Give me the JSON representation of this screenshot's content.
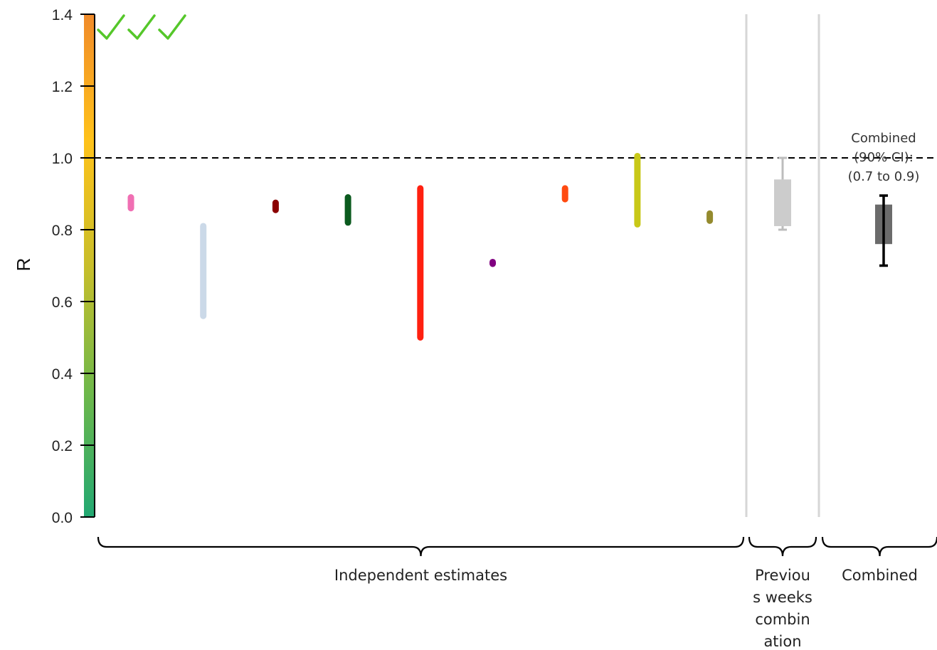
{
  "chart_data": {
    "type": "range",
    "ylabel": "R",
    "ylim": [
      0,
      1.4
    ],
    "yticks": [
      "0.0",
      "0.2",
      "0.4",
      "0.6",
      "0.8",
      "1.0",
      "1.2",
      "1.4"
    ],
    "reference_line": 1.0,
    "checkmarks": 3,
    "colorbar": {
      "stops": [
        "#22a872",
        "#6fb84a",
        "#c8be2a",
        "#ffc21a",
        "#f08a2a"
      ]
    },
    "independent_estimates": [
      {
        "low": 0.86,
        "high": 0.89,
        "color": "#f06fb3"
      },
      {
        "low": 0.56,
        "high": 0.81,
        "color": "#cbd9e8"
      },
      {
        "low": 0.855,
        "high": 0.875,
        "color": "#8b0000"
      },
      {
        "low": 0.82,
        "high": 0.89,
        "color": "#0b5a1e"
      },
      {
        "low": 0.5,
        "high": 0.915,
        "color": "#ff2010"
      },
      {
        "low": 0.705,
        "high": 0.71,
        "color": "#800080"
      },
      {
        "low": 0.885,
        "high": 0.915,
        "color": "#ff4a10"
      },
      {
        "low": 0.815,
        "high": 1.005,
        "color": "#c8c818"
      },
      {
        "low": 0.825,
        "high": 0.845,
        "color": "#948a2e"
      }
    ],
    "previous_weeks_combination": {
      "box_low": 0.81,
      "box_high": 0.94,
      "ci_low": 0.8,
      "ci_high": 1.0,
      "color": "#cccccc"
    },
    "combined": {
      "box_low": 0.76,
      "box_high": 0.87,
      "ci_low": 0.7,
      "ci_high": 0.895,
      "color": "#6b6b6b",
      "annotation": [
        "Combined",
        "(90% CI):",
        "(0.7 to 0.9)"
      ]
    },
    "groups": [
      {
        "label": [
          "Independent estimates"
        ]
      },
      {
        "label": [
          "Previou",
          "s weeks",
          "combin",
          "ation"
        ]
      },
      {
        "label": [
          "Combined"
        ]
      }
    ]
  }
}
